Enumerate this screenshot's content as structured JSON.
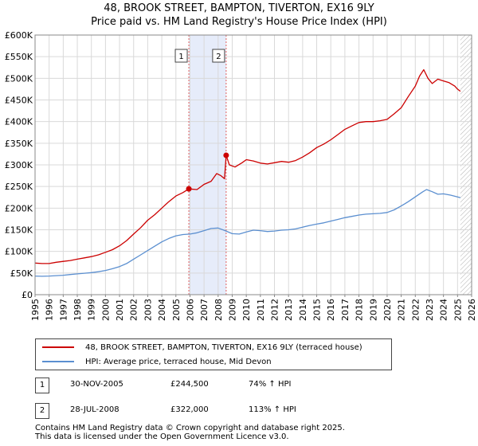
{
  "title_line1": "48, BROOK STREET, BAMPTON, TIVERTON, EX16 9LY",
  "title_line2": "Price paid vs. HM Land Registry's House Price Index (HPI)",
  "colors": {
    "property": "#cc0000",
    "hpi": "#5b8fd0",
    "shade": "#e6ecfa",
    "marker": "#cc0000"
  },
  "legend": {
    "property_label": "48, BROOK STREET, BAMPTON, TIVERTON, EX16 9LY (terraced house)",
    "hpi_label": "HPI: Average price, terraced house, Mid Devon"
  },
  "transactions": [
    {
      "badge": "1",
      "date": "30-NOV-2005",
      "price": "£244,500",
      "hpi_change": "74% ↑ HPI"
    },
    {
      "badge": "2",
      "date": "28-JUL-2008",
      "price": "£322,000",
      "hpi_change": "113% ↑ HPI"
    }
  ],
  "footer": {
    "line1": "Contains HM Land Registry data © Crown copyright and database right 2025.",
    "line2": "This data is licensed under the Open Government Licence v3.0."
  },
  "chart_data": {
    "type": "line",
    "title": "48, BROOK STREET, BAMPTON, TIVERTON, EX16 9LY — Price paid vs. HM Land Registry's House Price Index (HPI)",
    "xlabel": "",
    "ylabel": "",
    "xlim": [
      1995,
      2026
    ],
    "ylim": [
      0,
      600000
    ],
    "x_ticks": [
      "1995",
      "1996",
      "1997",
      "1998",
      "1999",
      "2000",
      "2001",
      "2002",
      "2003",
      "2004",
      "2005",
      "2006",
      "2007",
      "2008",
      "2009",
      "2010",
      "2011",
      "2012",
      "2013",
      "2014",
      "2015",
      "2016",
      "2017",
      "2018",
      "2019",
      "2020",
      "2021",
      "2022",
      "2023",
      "2024",
      "2025",
      "2026"
    ],
    "y_ticks": [
      {
        "value": 0,
        "label": "£0"
      },
      {
        "value": 50000,
        "label": "£50K"
      },
      {
        "value": 100000,
        "label": "£100K"
      },
      {
        "value": 150000,
        "label": "£150K"
      },
      {
        "value": 200000,
        "label": "£200K"
      },
      {
        "value": 250000,
        "label": "£250K"
      },
      {
        "value": 300000,
        "label": "£300K"
      },
      {
        "value": 350000,
        "label": "£350K"
      },
      {
        "value": 400000,
        "label": "£400K"
      },
      {
        "value": 450000,
        "label": "£450K"
      },
      {
        "value": 500000,
        "label": "£500K"
      },
      {
        "value": 550000,
        "label": "£550K"
      },
      {
        "value": 600000,
        "label": "£600K"
      }
    ],
    "grid": true,
    "shaded_region": [
      2005.92,
      2008.57
    ],
    "hatched_region": [
      2025.2,
      2026
    ],
    "series": [
      {
        "name": "48, BROOK STREET, BAMPTON, TIVERTON, EX16 9LY (terraced house)",
        "x": [
          1995.0,
          1995.5,
          1996.0,
          1996.5,
          1997.0,
          1997.5,
          1998.0,
          1998.5,
          1999.0,
          1999.5,
          2000.0,
          2000.5,
          2001.0,
          2001.5,
          2002.0,
          2002.5,
          2003.0,
          2003.5,
          2004.0,
          2004.5,
          2005.0,
          2005.5,
          2005.92,
          2006.5,
          2007.0,
          2007.5,
          2007.9,
          2008.2,
          2008.45,
          2008.57,
          2008.8,
          2009.2,
          2009.7,
          2010.0,
          2010.5,
          2011.0,
          2011.5,
          2012.0,
          2012.5,
          2013.0,
          2013.5,
          2014.0,
          2014.5,
          2015.0,
          2015.5,
          2016.0,
          2016.5,
          2017.0,
          2017.5,
          2018.0,
          2018.5,
          2019.0,
          2019.5,
          2020.0,
          2020.5,
          2021.0,
          2021.5,
          2022.0,
          2022.3,
          2022.6,
          2022.9,
          2023.2,
          2023.6,
          2024.0,
          2024.4,
          2024.8,
          2025.0,
          2025.2
        ],
        "values": [
          73000,
          72000,
          72000,
          75000,
          77000,
          79000,
          82000,
          85000,
          88000,
          92000,
          98000,
          104000,
          113000,
          125000,
          140000,
          155000,
          172000,
          185000,
          200000,
          215000,
          228000,
          236000,
          244500,
          243000,
          255000,
          262000,
          280000,
          275000,
          268000,
          322000,
          300000,
          295000,
          305000,
          312000,
          309000,
          304000,
          302000,
          305000,
          308000,
          306000,
          310000,
          318000,
          328000,
          340000,
          348000,
          358000,
          370000,
          382000,
          390000,
          398000,
          400000,
          400000,
          402000,
          405000,
          418000,
          432000,
          458000,
          482000,
          505000,
          520000,
          500000,
          488000,
          498000,
          494000,
          490000,
          482000,
          475000,
          470000
        ]
      },
      {
        "name": "HPI: Average price, terraced house, Mid Devon",
        "x": [
          1995.0,
          1995.5,
          1996.0,
          1996.5,
          1997.0,
          1997.5,
          1998.0,
          1998.5,
          1999.0,
          1999.5,
          2000.0,
          2000.5,
          2001.0,
          2001.5,
          2002.0,
          2002.5,
          2003.0,
          2003.5,
          2004.0,
          2004.5,
          2005.0,
          2005.5,
          2006.0,
          2006.5,
          2007.0,
          2007.5,
          2008.0,
          2008.5,
          2009.0,
          2009.5,
          2010.0,
          2010.5,
          2011.0,
          2011.5,
          2012.0,
          2012.5,
          2013.0,
          2013.5,
          2014.0,
          2014.5,
          2015.0,
          2015.5,
          2016.0,
          2016.5,
          2017.0,
          2017.5,
          2018.0,
          2018.5,
          2019.0,
          2019.5,
          2020.0,
          2020.5,
          2021.0,
          2021.5,
          2022.0,
          2022.5,
          2022.8,
          2023.2,
          2023.6,
          2024.0,
          2024.5,
          2025.0,
          2025.2
        ],
        "values": [
          43000,
          42500,
          43000,
          44000,
          45000,
          46500,
          48000,
          49500,
          51000,
          53000,
          56000,
          60000,
          65000,
          72000,
          82000,
          92000,
          102000,
          112000,
          122000,
          130000,
          136000,
          139000,
          140000,
          143000,
          148000,
          153000,
          154000,
          148000,
          141000,
          140000,
          145000,
          149000,
          148000,
          146000,
          147000,
          149000,
          150000,
          152000,
          156000,
          160000,
          163000,
          166000,
          170000,
          174000,
          178000,
          181000,
          184000,
          186000,
          187000,
          188000,
          190000,
          196000,
          205000,
          215000,
          226000,
          237000,
          243000,
          238000,
          232000,
          233000,
          230000,
          226000,
          224000
        ]
      }
    ],
    "transactions": [
      {
        "label": "1",
        "x": 2005.92,
        "y": 244500
      },
      {
        "label": "2",
        "x": 2008.57,
        "y": 322000
      }
    ]
  }
}
